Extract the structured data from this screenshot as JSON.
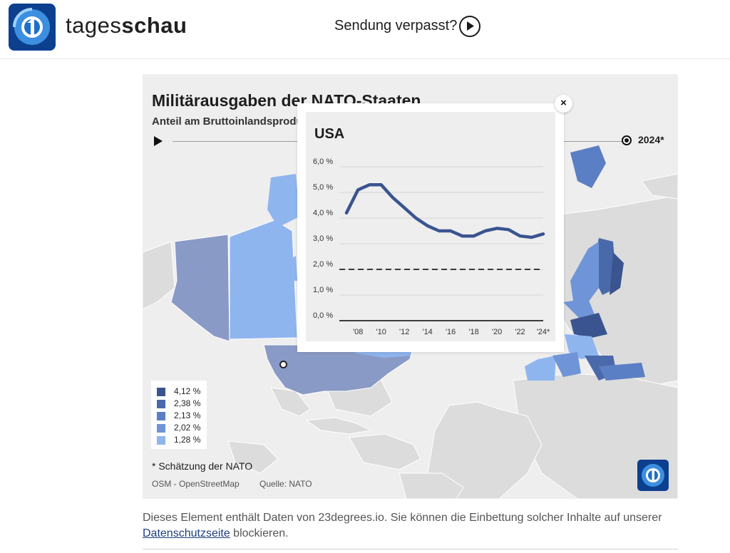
{
  "header": {
    "brand_regular": "tages",
    "brand_bold": "schau",
    "missed_label": "Sendung verpasst?",
    "logo_icon": "tagesschau-logo-icon",
    "play_icon": "play-circle-icon"
  },
  "embed": {
    "title": "Militärausgaben der NATO-Staaten",
    "subtitle": "Anteil am Bruttoinlandsprodukt",
    "timeline_year": "2024*",
    "legend": [
      {
        "label": "4,12 %",
        "color": "#3a5490"
      },
      {
        "label": "2,38 %",
        "color": "#4a69ab"
      },
      {
        "label": "2,13 %",
        "color": "#5b7fc4"
      },
      {
        "label": "2,02 %",
        "color": "#6f95d8"
      },
      {
        "label": "1,28 %",
        "color": "#8fb5ef"
      }
    ],
    "note": "* Schätzung der NATO",
    "credit_osm": "OSM - OpenStreetMap",
    "credit_source": "Quelle: NATO"
  },
  "popup": {
    "close_label": "×",
    "chart_data": {
      "type": "line",
      "title": "USA",
      "x_tick_labels": [
        "'08",
        "'10",
        "'12",
        "'14",
        "'16",
        "'18",
        "'20",
        "'22",
        "'24*"
      ],
      "y_tick_labels": [
        "0,0 %",
        "1,0 %",
        "2,0 %",
        "3,0 %",
        "4,0 %",
        "5,0 %",
        "6,0 %"
      ],
      "ylim": [
        0,
        6
      ],
      "xlim": [
        2007,
        2024
      ],
      "series": [
        {
          "color": "#3a5490",
          "x": [
            2007,
            2008,
            2009,
            2010,
            2011,
            2012,
            2013,
            2014,
            2015,
            2016,
            2017,
            2018,
            2019,
            2020,
            2021,
            2022,
            2023,
            2024
          ],
          "values": [
            4.2,
            5.1,
            5.3,
            5.3,
            4.8,
            4.4,
            4.0,
            3.7,
            3.5,
            3.5,
            3.3,
            3.3,
            3.5,
            3.6,
            3.55,
            3.3,
            3.25,
            3.38
          ]
        }
      ],
      "reference_line": {
        "value": 2.0,
        "style": "dashed"
      },
      "grid": true
    }
  },
  "disclaimer": {
    "text_before": "Dieses Element enthält Daten von 23degrees.io. Sie können die Einbettung solcher Inhalte auf unserer ",
    "link_text": "Datenschutzseite",
    "text_after": " blockieren."
  }
}
